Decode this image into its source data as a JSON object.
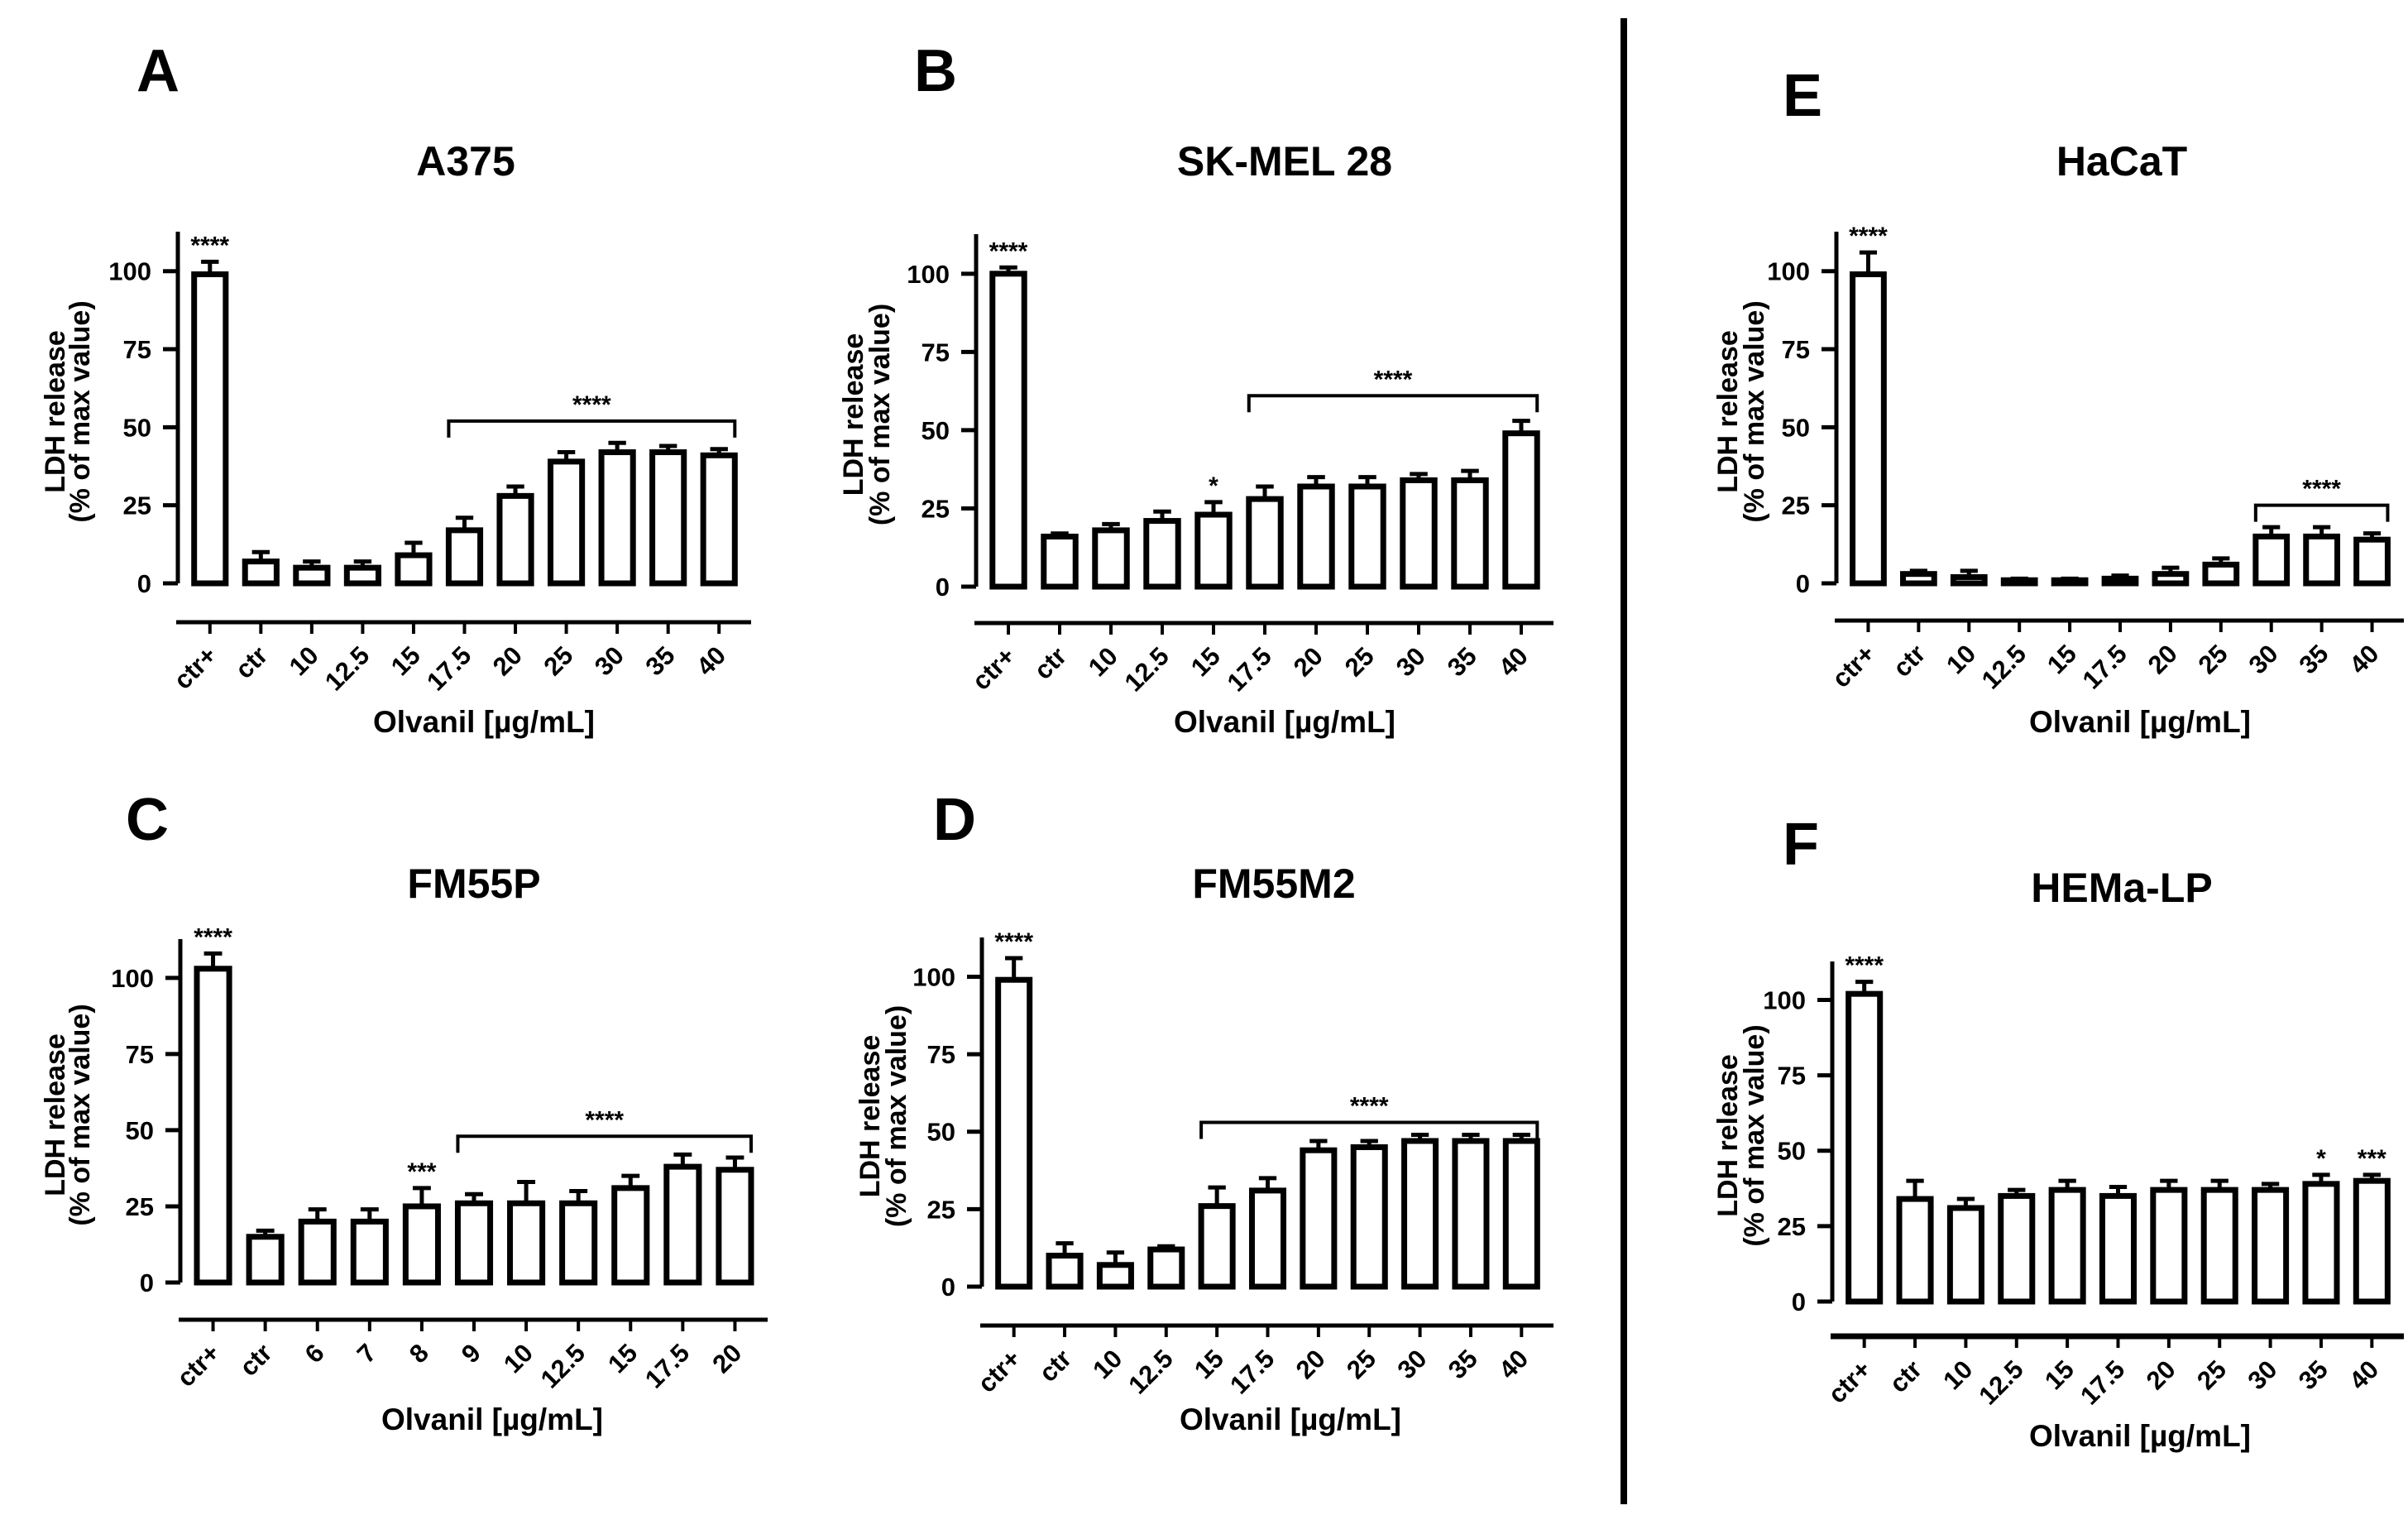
{
  "figure": {
    "divider": true
  },
  "colors": {
    "ink": "#000000",
    "bar_fill": "#ffffff"
  },
  "chart_data": [
    {
      "panel": "A",
      "title": "A375",
      "type": "bar",
      "xlabel": "Olvanil [µg/mL]",
      "ylabel_1": "LDH release",
      "ylabel_2": "(% of max value)",
      "ylim": [
        0,
        110
      ],
      "yticks": [
        0,
        25,
        50,
        75,
        100
      ],
      "categories": [
        "ctr+",
        "ctr",
        "10",
        "12.5",
        "15",
        "17.5",
        "20",
        "25",
        "30",
        "35",
        "40"
      ],
      "values": [
        99,
        7,
        5,
        5,
        9,
        17,
        28,
        39,
        42,
        42,
        41
      ],
      "errors": [
        4,
        3,
        2,
        2,
        4,
        4,
        3,
        3,
        3,
        2,
        2
      ],
      "marks": [
        {
          "index": 0,
          "text": "****"
        }
      ],
      "brackets": [
        {
          "from": 5,
          "to": 10,
          "level": 52,
          "text": "****"
        }
      ]
    },
    {
      "panel": "B",
      "title": "SK-MEL 28",
      "type": "bar",
      "xlabel": "Olvanil [µg/mL]",
      "ylabel_1": "LDH release",
      "ylabel_2": "(% of max value)",
      "ylim": [
        0,
        110
      ],
      "yticks": [
        0,
        25,
        50,
        75,
        100
      ],
      "categories": [
        "ctr+",
        "ctr",
        "10",
        "12.5",
        "15",
        "17.5",
        "20",
        "25",
        "30",
        "35",
        "40"
      ],
      "values": [
        100,
        16,
        18,
        21,
        23,
        28,
        32,
        32,
        34,
        34,
        49
      ],
      "errors": [
        2,
        1,
        2,
        3,
        4,
        4,
        3,
        3,
        2,
        3,
        4
      ],
      "marks": [
        {
          "index": 0,
          "text": "****"
        },
        {
          "index": 4,
          "text": "*"
        }
      ],
      "brackets": [
        {
          "from": 5,
          "to": 10,
          "level": 61,
          "text": "****"
        }
      ]
    },
    {
      "panel": "C",
      "title": "FM55P",
      "type": "bar",
      "xlabel": "Olvanil [µg/mL]",
      "ylabel_1": "LDH release",
      "ylabel_2": "(% of max value)",
      "ylim": [
        0,
        110
      ],
      "yticks": [
        0,
        25,
        50,
        75,
        100
      ],
      "categories": [
        "ctr+",
        "ctr",
        "6",
        "7",
        "8",
        "9",
        "10",
        "12.5",
        "15",
        "17.5",
        "20"
      ],
      "values": [
        103,
        15,
        20,
        20,
        25,
        26,
        26,
        26,
        31,
        38,
        37
      ],
      "errors": [
        5,
        2,
        4,
        4,
        6,
        3,
        7,
        4,
        4,
        4,
        4
      ],
      "marks": [
        {
          "index": 0,
          "text": "****"
        },
        {
          "index": 4,
          "text": "***"
        }
      ],
      "brackets": [
        {
          "from": 5,
          "to": 10,
          "level": 48,
          "text": "****"
        }
      ]
    },
    {
      "panel": "D",
      "title": "FM55M2",
      "type": "bar",
      "xlabel": "Olvanil [µg/mL]",
      "ylabel_1": "LDH release",
      "ylabel_2": "(% of max value)",
      "ylim": [
        0,
        110
      ],
      "yticks": [
        0,
        25,
        50,
        75,
        100
      ],
      "categories": [
        "ctr+",
        "ctr",
        "10",
        "12.5",
        "15",
        "17.5",
        "20",
        "25",
        "30",
        "35",
        "40"
      ],
      "values": [
        99,
        10,
        7,
        12,
        26,
        31,
        44,
        45,
        47,
        47,
        47
      ],
      "errors": [
        7,
        4,
        4,
        1,
        6,
        4,
        3,
        2,
        2,
        2,
        2
      ],
      "marks": [
        {
          "index": 0,
          "text": "****"
        }
      ],
      "brackets": [
        {
          "from": 4,
          "to": 10,
          "level": 53,
          "text": "****"
        }
      ]
    },
    {
      "panel": "E",
      "title": "HaCaT",
      "type": "bar",
      "xlabel": "Olvanil [µg/mL]",
      "ylabel_1": "LDH release",
      "ylabel_2": "(% of max value)",
      "ylim": [
        0,
        110
      ],
      "yticks": [
        0,
        25,
        50,
        75,
        100
      ],
      "categories": [
        "ctr+",
        "ctr",
        "10",
        "12.5",
        "15",
        "17.5",
        "20",
        "25",
        "30",
        "35",
        "40"
      ],
      "values": [
        99,
        3,
        2,
        1,
        1,
        1.5,
        3,
        6,
        15,
        15,
        14
      ],
      "errors": [
        7,
        1,
        2,
        0.5,
        0.5,
        1,
        2,
        2,
        3,
        3,
        2
      ],
      "marks": [
        {
          "index": 0,
          "text": "****"
        }
      ],
      "brackets": [
        {
          "from": 8,
          "to": 10,
          "level": 25,
          "text": "****"
        }
      ]
    },
    {
      "panel": "F",
      "title": "HEMa-LP",
      "type": "bar",
      "xlabel": "Olvanil [µg/mL]",
      "ylabel_1": "LDH release",
      "ylabel_2": "(% of max value)",
      "ylim": [
        0,
        110
      ],
      "yticks": [
        0,
        25,
        50,
        75,
        100
      ],
      "categories": [
        "ctr+",
        "ctr",
        "10",
        "12.5",
        "15",
        "17.5",
        "20",
        "25",
        "30",
        "35",
        "40"
      ],
      "values": [
        102,
        34,
        31,
        35,
        37,
        35,
        37,
        37,
        37,
        39,
        40
      ],
      "errors": [
        4,
        6,
        3,
        2,
        3,
        3,
        3,
        3,
        2,
        3,
        2
      ],
      "marks": [
        {
          "index": 0,
          "text": "****"
        },
        {
          "index": 9,
          "text": "*"
        },
        {
          "index": 10,
          "text": "***"
        }
      ],
      "brackets": []
    }
  ]
}
